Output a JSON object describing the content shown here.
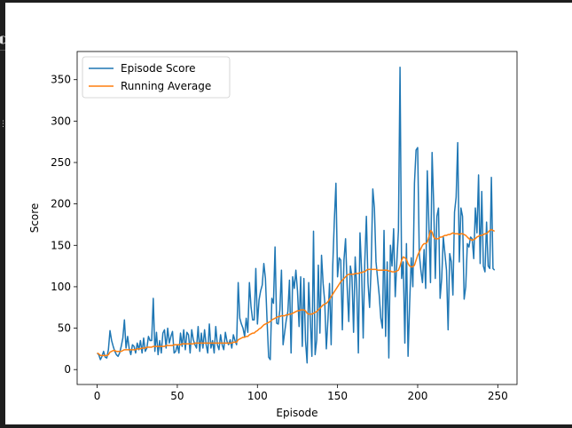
{
  "chart_data": {
    "type": "line",
    "xlabel": "Episode",
    "ylabel": "Score",
    "xlim": [
      -12.5,
      262
    ],
    "ylim": [
      -18,
      384
    ],
    "xticks": [
      0,
      50,
      100,
      150,
      200,
      250
    ],
    "yticks": [
      0,
      50,
      100,
      150,
      200,
      250,
      300,
      350
    ],
    "legend_position": "top-left",
    "grid": false,
    "series": [
      {
        "name": "Episode Score",
        "color": "#1f77b4",
        "values": [
          20,
          18,
          12,
          16,
          22,
          15,
          14,
          24,
          47,
          35,
          28,
          22,
          18,
          16,
          20,
          28,
          38,
          60,
          26,
          40,
          25,
          18,
          30,
          28,
          20,
          32,
          24,
          35,
          20,
          38,
          22,
          26,
          40,
          35,
          35,
          86,
          22,
          45,
          18,
          35,
          20,
          44,
          48,
          26,
          50,
          32,
          40,
          46,
          20,
          22,
          30,
          20,
          44,
          28,
          48,
          24,
          45,
          42,
          20,
          48,
          36,
          30,
          26,
          52,
          22,
          44,
          26,
          48,
          30,
          20,
          55,
          26,
          35,
          20,
          52,
          30,
          24,
          42,
          30,
          24,
          45,
          34,
          30,
          36,
          26,
          42,
          35,
          30,
          105,
          62,
          55,
          50,
          40,
          62,
          45,
          105,
          76,
          60,
          60,
          122,
          55,
          84,
          95,
          102,
          128,
          110,
          60,
          15,
          12,
          86,
          80,
          148,
          56,
          55,
          72,
          120,
          30,
          45,
          60,
          70,
          108,
          20,
          112,
          98,
          120,
          95,
          52,
          112,
          28,
          110,
          35,
          8,
          105,
          60,
          16,
          167,
          18,
          36,
          126,
          44,
          138,
          104,
          82,
          25,
          60,
          104,
          30,
          125,
          180,
          225,
          112,
          135,
          132,
          48,
          132,
          158,
          100,
          58,
          125,
          112,
          45,
          136,
          98,
          20,
          165,
          120,
          38,
          130,
          185,
          105,
          75,
          125,
          218,
          195,
          130,
          110,
          90,
          62,
          50,
          168,
          40,
          130,
          14,
          150,
          125,
          170,
          88,
          130,
          168,
          365,
          110,
          130,
          32,
          152,
          16,
          80,
          135,
          100,
          225,
          265,
          268,
          140,
          120,
          105,
          145,
          98,
          240,
          175,
          105,
          262,
          200,
          110,
          185,
          195,
          86,
          110,
          160,
          140,
          120,
          48,
          140,
          130,
          90,
          190,
          208,
          274,
          130,
          195,
          185,
          85,
          100,
          152,
          148,
          160,
          158,
          134,
          195,
          165,
          235,
          128,
          215,
          125,
          118,
          178,
          125,
          122,
          232,
          122,
          120
        ]
      },
      {
        "name": "Running Average",
        "color": "#ff7f0e",
        "values": [
          20,
          19,
          17,
          17,
          17,
          17,
          17,
          18,
          21,
          22,
          23,
          23,
          22,
          22,
          22,
          22,
          23,
          24,
          24,
          24,
          24,
          24,
          24,
          24,
          24,
          25,
          25,
          25,
          26,
          26,
          26,
          27,
          27,
          27,
          27,
          28,
          28,
          28,
          28,
          28,
          28,
          28,
          28,
          29,
          29,
          29,
          29,
          29,
          30,
          30,
          30,
          30,
          30,
          31,
          31,
          31,
          31,
          31,
          31,
          31,
          31,
          32,
          32,
          32,
          32,
          32,
          32,
          32,
          32,
          32,
          32,
          32,
          32,
          32,
          32,
          32,
          32,
          32,
          32,
          32,
          32,
          32,
          32,
          32,
          32,
          33,
          33,
          33,
          36,
          37,
          38,
          39,
          39,
          40,
          40,
          42,
          43,
          44,
          44,
          46,
          47,
          49,
          50,
          52,
          54,
          55,
          56,
          57,
          58,
          60,
          61,
          62,
          63,
          64,
          64,
          65,
          65,
          65,
          66,
          66,
          67,
          67,
          68,
          69,
          70,
          71,
          71,
          72,
          72,
          72,
          71,
          68,
          67,
          67,
          67,
          68,
          69,
          70,
          72,
          74,
          76,
          78,
          79,
          80,
          82,
          85,
          88,
          91,
          94,
          97,
          100,
          103,
          106,
          108,
          110,
          112,
          114,
          115,
          115,
          115,
          115,
          116,
          116,
          116,
          117,
          117,
          118,
          118,
          120,
          121,
          121,
          121,
          121,
          121,
          121,
          120,
          120,
          120,
          120,
          120,
          120,
          120,
          119,
          119,
          118,
          118,
          118,
          119,
          120,
          125,
          132,
          136,
          135,
          133,
          128,
          125,
          124,
          124,
          126,
          132,
          138,
          142,
          146,
          150,
          152,
          152,
          154,
          160,
          168,
          166,
          160,
          158,
          158,
          158,
          160,
          160,
          161,
          162,
          162,
          163,
          163,
          164,
          165,
          164,
          164,
          164,
          163,
          164,
          164,
          163,
          162,
          160,
          158,
          157,
          156,
          157,
          158,
          160,
          161,
          162,
          162,
          163,
          164,
          164,
          166,
          168,
          169,
          168,
          167
        ]
      }
    ]
  }
}
